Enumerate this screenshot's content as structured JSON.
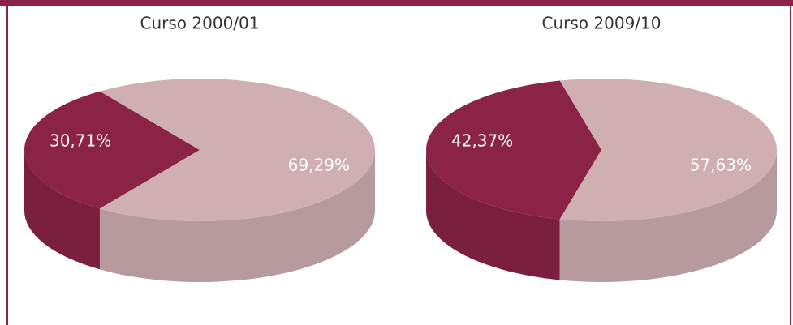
{
  "chart_data": [
    {
      "type": "pie3d",
      "title": "Curso 2000/01",
      "values": [
        30.71,
        69.29
      ],
      "value_labels": [
        "30,71%",
        "69,29%"
      ],
      "colors": [
        "#8b2346",
        "#cfafb2"
      ]
    },
    {
      "type": "pie3d",
      "title": "Curso 2009/10",
      "values": [
        42.37,
        57.63
      ],
      "value_labels": [
        "42,37%",
        "57,63%"
      ],
      "colors": [
        "#8b2346",
        "#cfafb2"
      ]
    }
  ]
}
